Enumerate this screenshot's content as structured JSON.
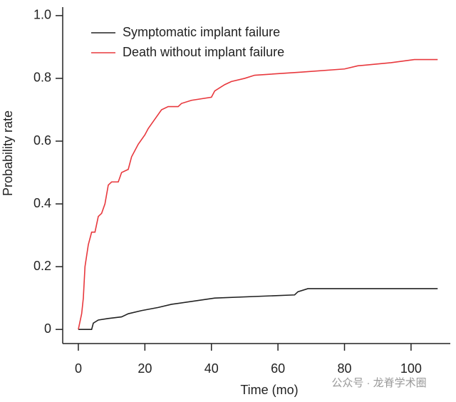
{
  "chart_data": {
    "type": "line",
    "x_label": "Time (mo)",
    "y_label": "Probability rate",
    "xlim": [
      -4.7,
      111.8
    ],
    "ylim": [
      -0.045,
      1.027
    ],
    "xticks": [
      0,
      20,
      40,
      60,
      80,
      100
    ],
    "yticks": [
      0,
      0.2,
      0.4,
      0.6,
      0.8,
      {
        "value": 1,
        "label": "1.0"
      }
    ],
    "legend_position": "upper left",
    "watermark": "公众号 · 龙脊学术圈",
    "series": [
      {
        "name": "Symptomatic implant failure",
        "color": "#222222",
        "x": [
          0,
          4,
          4.5,
          6,
          9,
          13,
          15,
          19,
          24,
          28,
          41,
          65,
          66,
          69,
          108
        ],
        "values": [
          0,
          0,
          0.02,
          0.03,
          0.035,
          0.04,
          0.05,
          0.06,
          0.07,
          0.08,
          0.1,
          0.11,
          0.12,
          0.13,
          0.13
        ]
      },
      {
        "name": "Death without implant failure",
        "color": "#e8383d",
        "x": [
          0,
          1,
          1.5,
          2,
          3,
          4,
          5,
          6,
          7,
          8,
          9,
          10,
          12,
          13,
          15,
          16,
          18,
          20,
          21,
          23,
          25,
          27,
          30,
          31,
          34,
          40,
          41,
          44,
          46,
          50,
          53,
          67,
          80,
          84,
          94,
          101,
          108
        ],
        "values": [
          0,
          0.05,
          0.1,
          0.2,
          0.27,
          0.31,
          0.31,
          0.36,
          0.37,
          0.4,
          0.46,
          0.47,
          0.47,
          0.5,
          0.51,
          0.55,
          0.59,
          0.62,
          0.64,
          0.67,
          0.7,
          0.71,
          0.71,
          0.72,
          0.73,
          0.74,
          0.76,
          0.78,
          0.79,
          0.8,
          0.81,
          0.82,
          0.83,
          0.84,
          0.85,
          0.86,
          0.86
        ]
      }
    ]
  }
}
